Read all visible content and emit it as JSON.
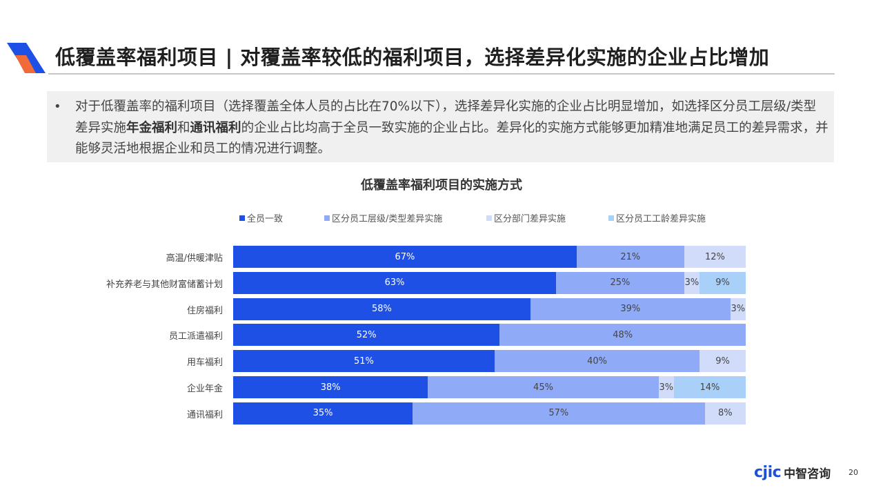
{
  "header": {
    "title": "低覆盖率福利项目 | 对覆盖率较低的福利项目，选择差异化实施的企业占比增加"
  },
  "summary": {
    "bullet": "•",
    "part1": "对于低覆盖率的福利项目（选择覆盖全体人员的占比在70%以下），选择差异化实施的企业占比明显增加，如选择区分员工层级/类型差异实施",
    "bold1": "年金福利",
    "part2": "和",
    "bold2": "通讯福利",
    "part3": "的企业占比均高于全员一致实施的企业占比。差异化的实施方式能够更加精准地满足员工的差异需求，并能够灵活地根据企业和员工的情况进行调整。"
  },
  "chart_data": {
    "type": "bar",
    "orientation": "horizontal",
    "stacked": true,
    "title": "低覆盖率福利项目的实施方式",
    "legend_position": "top",
    "categories": [
      "高温/供暖津贴",
      "补充养老与其他财富储蓄计划",
      "住房福利",
      "员工派遣福利",
      "用车福利",
      "企业年金",
      "通讯福利"
    ],
    "series": [
      {
        "name": "全员一致",
        "color": "#1e50e6",
        "text_color": "#ffffff",
        "values": [
          67,
          63,
          58,
          52,
          51,
          38,
          35
        ]
      },
      {
        "name": "区分员工层级/类型差异实施",
        "color": "#8fabf8",
        "text_color": "#444444",
        "values": [
          21,
          25,
          39,
          48,
          40,
          45,
          57
        ]
      },
      {
        "name": "区分部门差异实施",
        "color": "#d1dcfb",
        "text_color": "#444444",
        "values": [
          12,
          3,
          3,
          0,
          9,
          3,
          8
        ]
      },
      {
        "name": "区分员工工龄差异实施",
        "color": "#a9d0f8",
        "text_color": "#444444",
        "values": [
          0,
          9,
          0,
          0,
          0,
          14,
          0
        ]
      }
    ],
    "value_suffix": "%"
  },
  "footer": {
    "brand_en": "cjic",
    "brand_cn": "中智咨询",
    "page_number": "20"
  }
}
